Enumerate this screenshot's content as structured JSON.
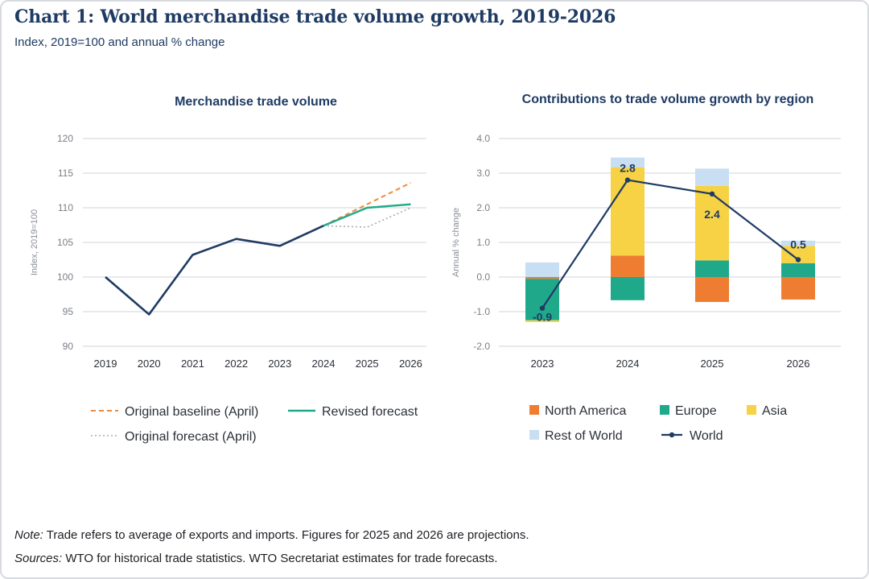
{
  "header": {
    "title": "Chart 1: World merchandise trade volume growth, 2019-2026",
    "subtitle": "Index, 2019=100 and annual % change"
  },
  "footer": {
    "note_label": "Note:",
    "note_text": " Trade refers to average of exports and imports. Figures for 2025 and 2026 are projections.",
    "sources_label": "Sources:",
    "sources_text": " WTO for historical trade statistics. WTO Secretariat estimates for trade forecasts."
  },
  "chart_data": [
    {
      "type": "line",
      "title": "Merchandise trade volume",
      "xlabel": "",
      "ylabel": "Index, 2019=100",
      "x": [
        "2019",
        "2020",
        "2021",
        "2022",
        "2023",
        "2024",
        "2025",
        "2026"
      ],
      "ylim": [
        90,
        120
      ],
      "yticks": [
        90,
        95,
        100,
        105,
        110,
        115,
        120
      ],
      "grid": true,
      "legend_position": "bottom",
      "series": [
        {
          "name": "",
          "color": "#1f3b63",
          "style": "solid",
          "points": [
            [
              "2019",
              100.0
            ],
            [
              "2020",
              94.6
            ],
            [
              "2021",
              103.2
            ],
            [
              "2022",
              105.5
            ],
            [
              "2023",
              104.5
            ],
            [
              "2024",
              107.4
            ]
          ]
        },
        {
          "name": "Original baseline (April)",
          "color": "#f08a3e",
          "style": "dashed",
          "points": [
            [
              "2024",
              107.4
            ],
            [
              "2025",
              110.5
            ],
            [
              "2026",
              113.6
            ]
          ]
        },
        {
          "name": "Original forecast (April)",
          "color": "#a9adb2",
          "style": "dotted",
          "points": [
            [
              "2024",
              107.4
            ],
            [
              "2025",
              107.2
            ],
            [
              "2026",
              110.0
            ]
          ]
        },
        {
          "name": "Revised forecast",
          "color": "#1fa98a",
          "style": "solid",
          "points": [
            [
              "2024",
              107.4
            ],
            [
              "2025",
              110.0
            ],
            [
              "2026",
              110.5
            ]
          ]
        }
      ]
    },
    {
      "type": "bar",
      "stacked": true,
      "title": "Contributions to trade volume growth by region",
      "xlabel": "",
      "ylabel": "Annual % change",
      "categories": [
        "2023",
        "2024",
        "2025",
        "2026"
      ],
      "ylim": [
        -2.0,
        4.0
      ],
      "yticks": [
        "-2.0",
        "-1.0",
        "0.0",
        "1.0",
        "2.0",
        "3.0",
        "4.0"
      ],
      "grid": true,
      "legend_position": "bottom",
      "series": [
        {
          "name": "North America",
          "color": "#ee7d31",
          "values": [
            -0.05,
            0.62,
            -0.72,
            -0.65
          ]
        },
        {
          "name": "Europe",
          "color": "#1fa98a",
          "values": [
            -1.2,
            -0.67,
            0.48,
            0.4
          ]
        },
        {
          "name": "Asia",
          "color": "#f6d244",
          "values": [
            -0.05,
            2.55,
            2.15,
            0.5
          ]
        },
        {
          "name": "Rest of World",
          "color": "#c7def3",
          "values": [
            0.42,
            0.28,
            0.5,
            0.15
          ]
        }
      ],
      "line": {
        "name": "World",
        "color": "#1f3b63",
        "values": [
          -0.9,
          2.8,
          2.4,
          0.5
        ],
        "labels": [
          "-0.9",
          "2.8",
          "2.4",
          "0.5"
        ]
      }
    }
  ]
}
